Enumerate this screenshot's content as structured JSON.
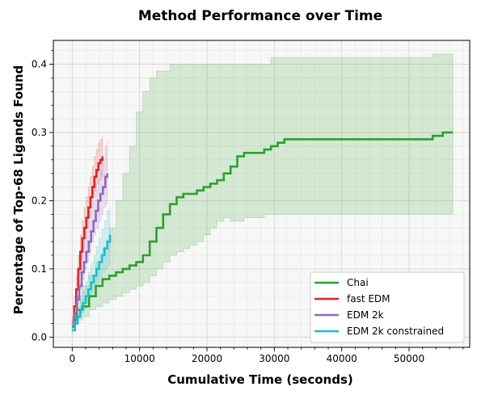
{
  "chart_data": {
    "type": "line",
    "title": "Method Performance over Time",
    "xlabel": "Cumulative Time (seconds)",
    "ylabel": "Percentage of Top-68 Ligands Found",
    "xlim": [
      -2800,
      59000
    ],
    "ylim": [
      -0.015,
      0.435
    ],
    "xticks": [
      0,
      10000,
      20000,
      30000,
      40000,
      50000
    ],
    "yticks": [
      0.0,
      0.1,
      0.2,
      0.3,
      0.4
    ],
    "xtick_labels": [
      "0",
      "10000",
      "20000",
      "30000",
      "40000",
      "50000"
    ],
    "ytick_labels": [
      "0.0",
      "0.1",
      "0.2",
      "0.3",
      "0.4"
    ],
    "grid": true,
    "legend_position": "lower right",
    "series": [
      {
        "name": "Chai",
        "color": "#2ca02c",
        "step": true,
        "x": [
          0,
          300,
          700,
          1500,
          2500,
          3500,
          4500,
          5500,
          6500,
          7500,
          8500,
          9500,
          10500,
          11500,
          12500,
          13500,
          14500,
          15500,
          16500,
          17500,
          18500,
          19500,
          20500,
          21500,
          22500,
          23500,
          24500,
          25500,
          26500,
          27500,
          28500,
          29500,
          30500,
          31500,
          40000,
          50000,
          53500,
          55000,
          56500
        ],
        "y": [
          0.015,
          0.025,
          0.04,
          0.045,
          0.06,
          0.075,
          0.085,
          0.09,
          0.095,
          0.1,
          0.105,
          0.11,
          0.12,
          0.14,
          0.16,
          0.18,
          0.195,
          0.205,
          0.21,
          0.21,
          0.215,
          0.22,
          0.225,
          0.23,
          0.24,
          0.25,
          0.265,
          0.27,
          0.27,
          0.27,
          0.275,
          0.28,
          0.285,
          0.29,
          0.29,
          0.29,
          0.295,
          0.3,
          0.3
        ],
        "lower": [
          0.01,
          0.015,
          0.02,
          0.025,
          0.03,
          0.04,
          0.045,
          0.05,
          0.055,
          0.06,
          0.065,
          0.07,
          0.075,
          0.08,
          0.09,
          0.1,
          0.11,
          0.12,
          0.125,
          0.13,
          0.135,
          0.14,
          0.15,
          0.16,
          0.17,
          0.175,
          0.17,
          0.17,
          0.175,
          0.175,
          0.175,
          0.18,
          0.18,
          0.18,
          0.18,
          0.18,
          0.18,
          0.18,
          0.18
        ],
        "upper": [
          0.02,
          0.035,
          0.06,
          0.075,
          0.09,
          0.11,
          0.13,
          0.16,
          0.2,
          0.24,
          0.28,
          0.33,
          0.36,
          0.38,
          0.39,
          0.39,
          0.4,
          0.4,
          0.4,
          0.4,
          0.4,
          0.4,
          0.4,
          0.4,
          0.4,
          0.4,
          0.4,
          0.4,
          0.4,
          0.4,
          0.4,
          0.41,
          0.41,
          0.41,
          0.41,
          0.41,
          0.415,
          0.415,
          0.415
        ]
      },
      {
        "name": "fast EDM",
        "color": "#d62728",
        "step": true,
        "x": [
          0,
          300,
          600,
          900,
          1200,
          1500,
          1800,
          2100,
          2400,
          2700,
          3000,
          3300,
          3600,
          3900,
          4200,
          4500
        ],
        "y": [
          0.015,
          0.045,
          0.07,
          0.1,
          0.125,
          0.145,
          0.16,
          0.175,
          0.19,
          0.205,
          0.22,
          0.235,
          0.245,
          0.255,
          0.26,
          0.265
        ],
        "lower": [
          0.01,
          0.03,
          0.05,
          0.075,
          0.095,
          0.115,
          0.13,
          0.145,
          0.16,
          0.175,
          0.19,
          0.205,
          0.215,
          0.225,
          0.23,
          0.235
        ],
        "upper": [
          0.02,
          0.06,
          0.09,
          0.12,
          0.15,
          0.17,
          0.19,
          0.205,
          0.22,
          0.235,
          0.25,
          0.265,
          0.275,
          0.285,
          0.29,
          0.295
        ]
      },
      {
        "name": "EDM 2k",
        "color": "#9467bd",
        "step": true,
        "x": [
          0,
          350,
          700,
          1050,
          1400,
          1750,
          2100,
          2450,
          2800,
          3150,
          3500,
          3850,
          4200,
          4550,
          4900,
          5200
        ],
        "y": [
          0.015,
          0.035,
          0.055,
          0.075,
          0.095,
          0.11,
          0.125,
          0.14,
          0.155,
          0.17,
          0.185,
          0.2,
          0.21,
          0.22,
          0.235,
          0.24
        ],
        "lower": [
          0.01,
          0.025,
          0.04,
          0.055,
          0.07,
          0.085,
          0.1,
          0.11,
          0.125,
          0.14,
          0.15,
          0.16,
          0.17,
          0.18,
          0.19,
          0.195
        ],
        "upper": [
          0.02,
          0.045,
          0.07,
          0.095,
          0.12,
          0.14,
          0.155,
          0.17,
          0.185,
          0.2,
          0.215,
          0.23,
          0.245,
          0.26,
          0.28,
          0.29
        ]
      },
      {
        "name": "EDM 2k constrained",
        "color": "#17becf",
        "step": true,
        "x": [
          0,
          400,
          800,
          1200,
          1600,
          2000,
          2400,
          2800,
          3200,
          3600,
          4000,
          4400,
          4800,
          5200,
          5600
        ],
        "y": [
          0.01,
          0.02,
          0.03,
          0.04,
          0.05,
          0.06,
          0.07,
          0.08,
          0.09,
          0.1,
          0.11,
          0.12,
          0.13,
          0.14,
          0.15
        ],
        "lower": [
          0.005,
          0.015,
          0.02,
          0.028,
          0.035,
          0.042,
          0.05,
          0.058,
          0.065,
          0.073,
          0.08,
          0.088,
          0.095,
          0.1,
          0.105
        ],
        "upper": [
          0.015,
          0.028,
          0.04,
          0.055,
          0.068,
          0.082,
          0.095,
          0.108,
          0.12,
          0.133,
          0.145,
          0.158,
          0.17,
          0.185,
          0.195
        ]
      }
    ]
  }
}
